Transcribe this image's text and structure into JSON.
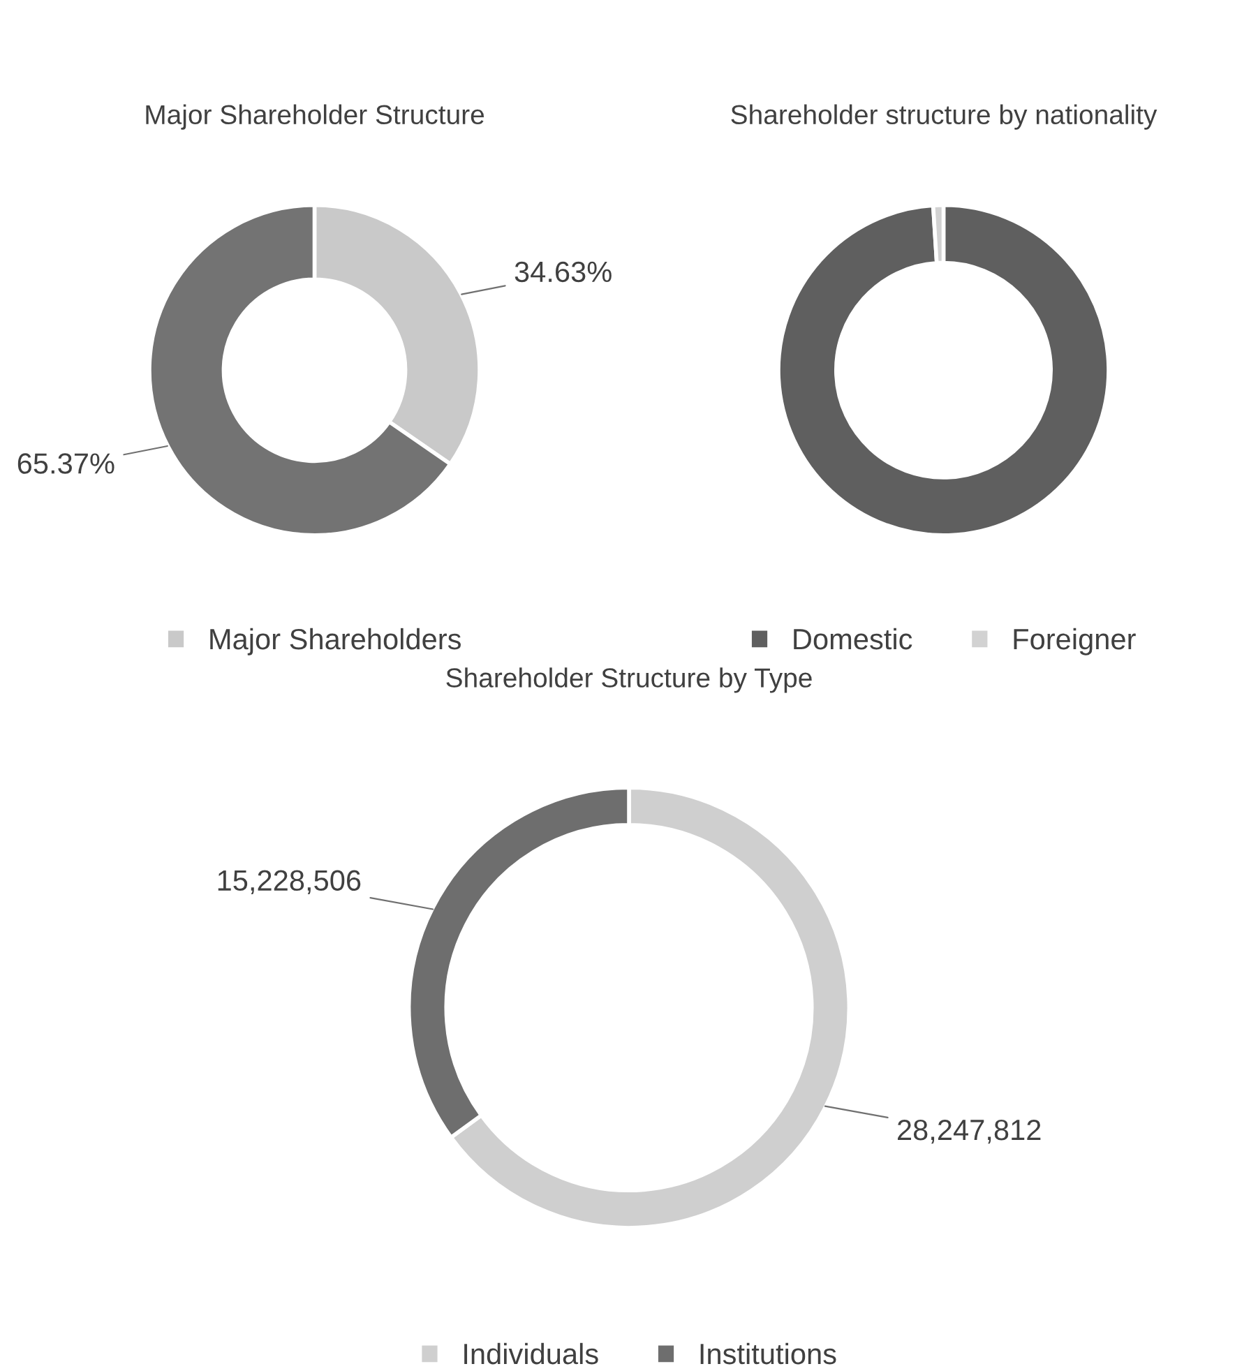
{
  "chart_data": [
    {
      "type": "donut",
      "title": "Major Shareholder Structure",
      "categories": [
        "Major Shareholders",
        null
      ],
      "values": [
        34.63,
        65.37
      ],
      "value_labels": [
        "34.63%",
        "65.37%"
      ],
      "colors": [
        "#c9c9c9",
        "#737373"
      ],
      "legend": "bottom"
    },
    {
      "type": "donut",
      "title": "Shareholder structure by nationality",
      "categories": [
        "Domestic",
        "Foreigner"
      ],
      "values": [
        99,
        1
      ],
      "colors": [
        "#5f5f5f",
        "#d2d2d2"
      ],
      "legend": "bottom"
    },
    {
      "type": "donut",
      "title": "Shareholder Structure by Type",
      "categories": [
        "Individuals",
        "Institutions"
      ],
      "values": [
        28247812,
        15228506
      ],
      "value_labels": [
        "28,247,812",
        "15,228,506"
      ],
      "colors": [
        "#cfcfcf",
        "#6e6e6e"
      ],
      "legend": "bottom"
    }
  ]
}
